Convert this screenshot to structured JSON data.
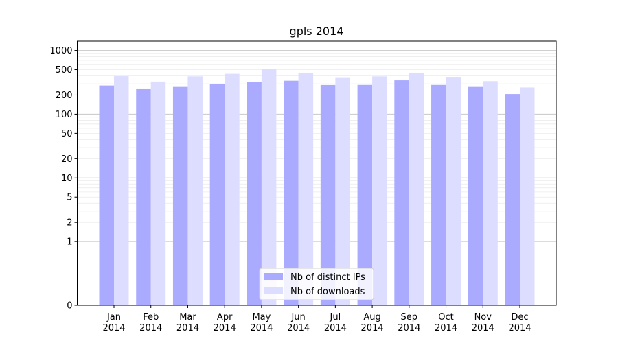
{
  "chart_data": {
    "type": "bar",
    "title": "gpls 2014",
    "xlabel": "",
    "ylabel": "",
    "yscale": "symlog",
    "ylim": [
      0,
      1400
    ],
    "yticks": [
      0,
      1,
      2,
      5,
      10,
      20,
      50,
      100,
      200,
      500,
      1000
    ],
    "grid": true,
    "legend_position": "bottom-center",
    "categories": [
      "Jan\n2014",
      "Feb\n2014",
      "Mar\n2014",
      "Apr\n2014",
      "May\n2014",
      "Jun\n2014",
      "Jul\n2014",
      "Aug\n2014",
      "Sep\n2014",
      "Oct\n2014",
      "Nov\n2014",
      "Dec\n2014"
    ],
    "series": [
      {
        "name": "Nb of distinct IPs",
        "color": "#aaaaff",
        "values": [
          282,
          247,
          268,
          300,
          320,
          335,
          287,
          288,
          340,
          288,
          268,
          207
        ]
      },
      {
        "name": "Nb of downloads",
        "color": "#ddddff",
        "values": [
          395,
          325,
          392,
          430,
          510,
          448,
          380,
          392,
          448,
          385,
          330,
          263
        ]
      }
    ]
  }
}
